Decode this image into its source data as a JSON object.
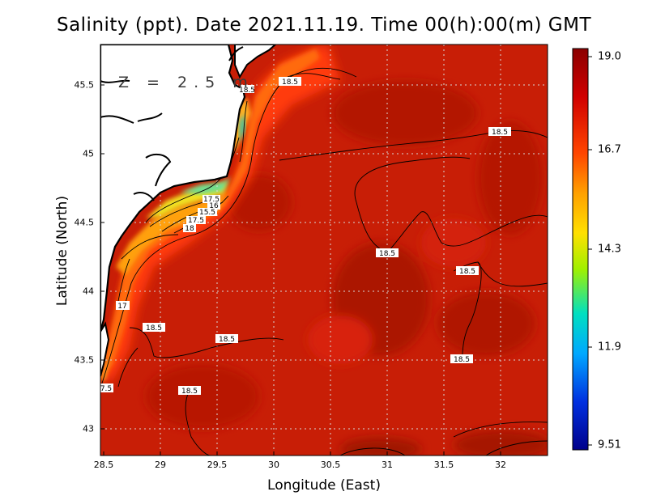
{
  "title": "Salinity (ppt). Date 2021.11.19. Time 00(h):00(m) GMT",
  "depth_label": "Z = 2.5 m",
  "x_axis": {
    "label": "Longitude (East)",
    "ticks": [
      "28.5",
      "29",
      "29.5",
      "30",
      "30.5",
      "31",
      "31.5",
      "32"
    ]
  },
  "y_axis": {
    "label": "Latitude (North)",
    "ticks": [
      "45.5",
      "45",
      "44.5",
      "44",
      "43.5",
      "43"
    ]
  },
  "colorbar": {
    "labels": [
      "19.0",
      "16.7",
      "14.3",
      "11.9",
      "9.51"
    ],
    "min": 9.51,
    "max": 19.0,
    "colors": [
      "#8b0000",
      "#e00000",
      "#ff6a00",
      "#ffd000",
      "#b0f000",
      "#00e0c0",
      "#00a0ff",
      "#0030e0",
      "#00008b"
    ]
  },
  "contour_labels": [
    {
      "text": "18.5"
    },
    {
      "text": "18.5"
    },
    {
      "text": "18.5"
    },
    {
      "text": "18.5"
    },
    {
      "text": "18.5"
    },
    {
      "text": "18.5"
    },
    {
      "text": "18.5"
    },
    {
      "text": "18.5"
    },
    {
      "text": "18.5"
    },
    {
      "text": "17"
    },
    {
      "text": "7.5"
    },
    {
      "text": "17.5"
    },
    {
      "text": "16"
    },
    {
      "text": "15.5"
    },
    {
      "text": "17.5"
    },
    {
      "text": "18"
    }
  ],
  "map_data": {
    "extent": {
      "lon_min": 28.5,
      "lon_max": 32.4,
      "lat_min": 42.82,
      "lat_max": 45.8
    },
    "background_salinity": "18.5-19.0",
    "land_color": "#ffffff"
  }
}
